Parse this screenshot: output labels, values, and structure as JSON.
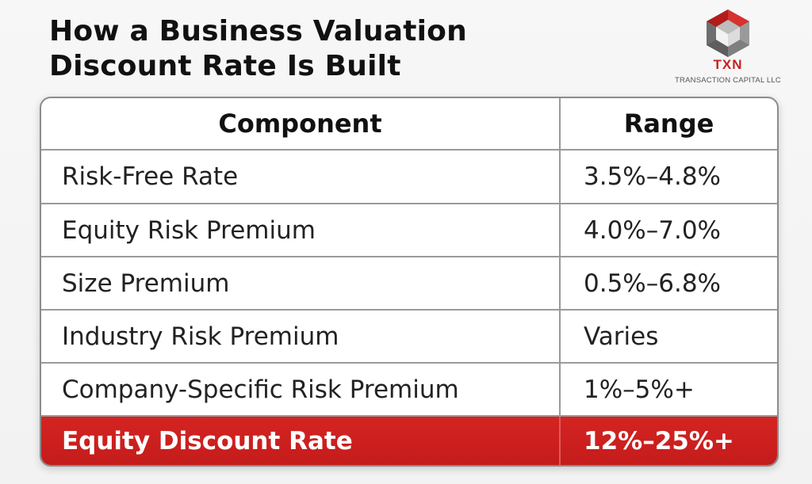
{
  "title": {
    "line1": "How a Business Valuation",
    "line2": "Discount Rate Is Built"
  },
  "logo": {
    "name": "TXN",
    "subtitle": "TRANSACTION CAPITAL LLC",
    "colors": {
      "red": "#c8201e",
      "gray": "#7a7a7a"
    }
  },
  "table": {
    "headers": {
      "component": "Component",
      "range": "Range"
    },
    "rows": [
      {
        "component": "Risk-Free Rate",
        "range": "3.5%–4.8%"
      },
      {
        "component": "Equity Risk Premium",
        "range": "4.0%–7.0%"
      },
      {
        "component": "Size Premium",
        "range": "0.5%–6.8%"
      },
      {
        "component": "Industry Risk Premium",
        "range": "Varies"
      },
      {
        "component": "Company-Specific Risk Premium",
        "range": "1%–5%+"
      }
    ],
    "total": {
      "component": "Equity Discount Rate",
      "range": "12%–25%+"
    },
    "colors": {
      "total_row": "#c8201e"
    }
  }
}
